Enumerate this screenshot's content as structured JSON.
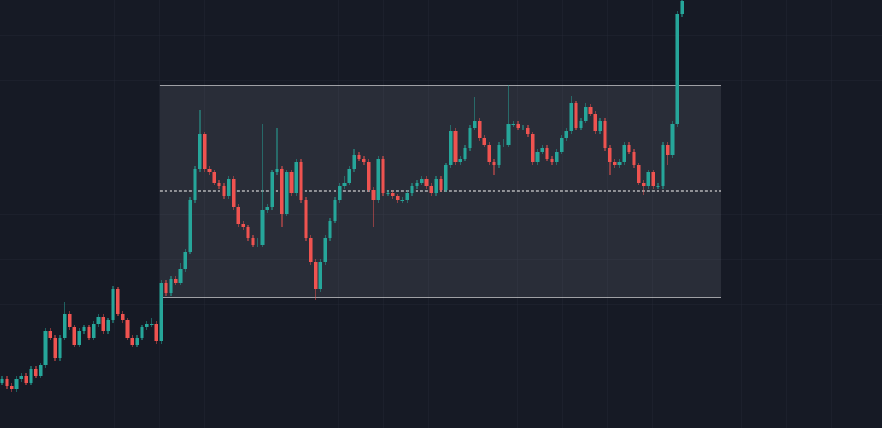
{
  "chart_data": {
    "type": "candlestick",
    "up_color": "#26a69a",
    "down_color": "#ef5350",
    "xlim": [
      -0.43,
      182.43
    ],
    "ylim": [
      0,
      621
    ],
    "x": [
      0,
      1,
      2,
      3,
      4,
      5,
      6,
      7,
      8,
      9,
      10,
      11,
      12,
      13,
      14,
      15,
      16,
      17,
      18,
      19,
      20,
      21,
      22,
      23,
      24,
      25,
      26,
      27,
      28,
      29,
      30,
      31,
      32,
      33,
      34,
      35,
      36,
      37,
      38,
      39,
      40,
      41,
      42,
      43,
      44,
      45,
      46,
      47,
      48,
      49,
      50,
      51,
      52,
      53,
      54,
      55,
      56,
      57,
      58,
      59,
      60,
      61,
      62,
      63,
      64,
      65,
      66,
      67,
      68,
      69,
      70,
      71,
      72,
      73,
      74,
      75,
      76,
      77,
      78,
      79,
      80,
      81,
      82,
      83,
      84,
      85,
      86,
      87,
      88,
      89,
      90,
      91,
      92,
      93,
      94,
      95,
      96,
      97,
      98,
      99,
      100,
      101,
      102,
      103,
      104,
      105,
      106,
      107,
      108,
      109,
      110,
      111,
      112,
      113,
      114,
      115,
      116,
      117,
      118,
      119,
      120,
      121,
      122,
      123,
      124,
      125,
      126,
      127,
      128,
      129,
      130,
      131,
      132,
      133,
      134,
      135,
      136,
      137,
      138,
      139,
      140,
      141
    ],
    "open": [
      66,
      71,
      61,
      56,
      71,
      76,
      66,
      86,
      76,
      91,
      141,
      131,
      101,
      131,
      166,
      146,
      121,
      141,
      146,
      131,
      151,
      161,
      141,
      156,
      201,
      166,
      156,
      131,
      121,
      131,
      146,
      151,
      151,
      126,
      211,
      196,
      216,
      211,
      231,
      256,
      331,
      376,
      426,
      376,
      371,
      356,
      351,
      336,
      361,
      321,
      296,
      291,
      276,
      266,
      266,
      316,
      321,
      371,
      376,
      311,
      371,
      341,
      386,
      331,
      276,
      241,
      201,
      241,
      276,
      301,
      331,
      351,
      356,
      376,
      396,
      391,
      386,
      346,
      331,
      391,
      341,
      341,
      336,
      331,
      331,
      341,
      351,
      356,
      361,
      351,
      341,
      361,
      346,
      381,
      431,
      386,
      391,
      406,
      436,
      446,
      421,
      411,
      386,
      381,
      411,
      411,
      441,
      441,
      436,
      436,
      426,
      386,
      401,
      406,
      391,
      386,
      401,
      421,
      431,
      471,
      436,
      446,
      466,
      456,
      431,
      446,
      406,
      386,
      381,
      386,
      411,
      401,
      381,
      356,
      351,
      371,
      351,
      351,
      411,
      396,
      441,
      601
    ],
    "high": [
      75,
      75,
      65,
      75,
      80,
      80,
      90,
      90,
      95,
      145,
      145,
      135,
      135,
      183,
      170,
      150,
      145,
      150,
      150,
      155,
      165,
      165,
      160,
      206,
      205,
      170,
      160,
      135,
      135,
      150,
      155,
      160,
      155,
      215,
      215,
      220,
      220,
      240,
      260,
      335,
      380,
      461,
      430,
      380,
      375,
      360,
      355,
      365,
      365,
      325,
      300,
      295,
      280,
      275,
      441,
      325,
      375,
      436,
      380,
      375,
      375,
      390,
      390,
      335,
      280,
      245,
      245,
      280,
      305,
      335,
      355,
      365,
      380,
      405,
      400,
      395,
      390,
      350,
      395,
      395,
      345,
      345,
      340,
      335,
      345,
      355,
      360,
      365,
      365,
      355,
      365,
      365,
      385,
      440,
      435,
      395,
      410,
      440,
      480,
      450,
      425,
      415,
      390,
      415,
      420,
      498,
      445,
      445,
      440,
      440,
      430,
      405,
      410,
      410,
      395,
      405,
      425,
      435,
      481,
      475,
      450,
      471,
      470,
      460,
      450,
      450,
      410,
      390,
      390,
      415,
      415,
      405,
      385,
      360,
      375,
      375,
      355,
      415,
      415,
      446,
      605,
      625
    ],
    "low": [
      62,
      57,
      52,
      52,
      67,
      62,
      62,
      72,
      72,
      87,
      127,
      97,
      97,
      127,
      142,
      117,
      117,
      137,
      127,
      127,
      147,
      137,
      137,
      152,
      162,
      152,
      127,
      117,
      117,
      127,
      142,
      147,
      122,
      122,
      192,
      192,
      207,
      207,
      227,
      252,
      327,
      372,
      372,
      367,
      352,
      347,
      332,
      332,
      317,
      292,
      287,
      272,
      262,
      262,
      262,
      312,
      317,
      367,
      291,
      307,
      337,
      337,
      327,
      272,
      237,
      186,
      197,
      237,
      272,
      297,
      327,
      347,
      352,
      372,
      387,
      382,
      342,
      291,
      327,
      337,
      337,
      332,
      327,
      327,
      327,
      337,
      347,
      352,
      347,
      337,
      337,
      342,
      342,
      377,
      382,
      382,
      387,
      402,
      432,
      417,
      407,
      382,
      367,
      377,
      407,
      407,
      437,
      432,
      432,
      422,
      382,
      382,
      397,
      387,
      382,
      382,
      397,
      417,
      427,
      432,
      432,
      442,
      452,
      427,
      427,
      402,
      367,
      377,
      377,
      382,
      397,
      377,
      352,
      338,
      347,
      347,
      347,
      347,
      382,
      392,
      437,
      597
    ],
    "close": [
      71,
      61,
      56,
      71,
      76,
      66,
      86,
      76,
      91,
      141,
      131,
      101,
      131,
      166,
      146,
      121,
      141,
      146,
      131,
      151,
      161,
      141,
      156,
      201,
      166,
      156,
      131,
      121,
      131,
      146,
      151,
      151,
      126,
      211,
      196,
      216,
      211,
      231,
      256,
      331,
      376,
      426,
      376,
      371,
      356,
      351,
      336,
      361,
      321,
      296,
      291,
      276,
      266,
      266,
      316,
      321,
      371,
      376,
      311,
      371,
      341,
      386,
      331,
      276,
      241,
      201,
      241,
      276,
      301,
      331,
      351,
      356,
      376,
      396,
      391,
      386,
      346,
      331,
      391,
      341,
      341,
      336,
      331,
      331,
      341,
      351,
      356,
      361,
      351,
      341,
      361,
      346,
      381,
      431,
      386,
      391,
      406,
      436,
      446,
      421,
      411,
      386,
      381,
      411,
      411,
      441,
      441,
      436,
      436,
      426,
      386,
      401,
      406,
      391,
      386,
      401,
      421,
      431,
      471,
      436,
      446,
      466,
      456,
      431,
      446,
      406,
      386,
      381,
      386,
      411,
      401,
      381,
      356,
      351,
      371,
      351,
      351,
      411,
      396,
      441,
      601,
      619
    ],
    "range_box": {
      "x": [
        32.7,
        149.1
      ],
      "top": 497,
      "bottom": 189,
      "mid": 344
    }
  }
}
